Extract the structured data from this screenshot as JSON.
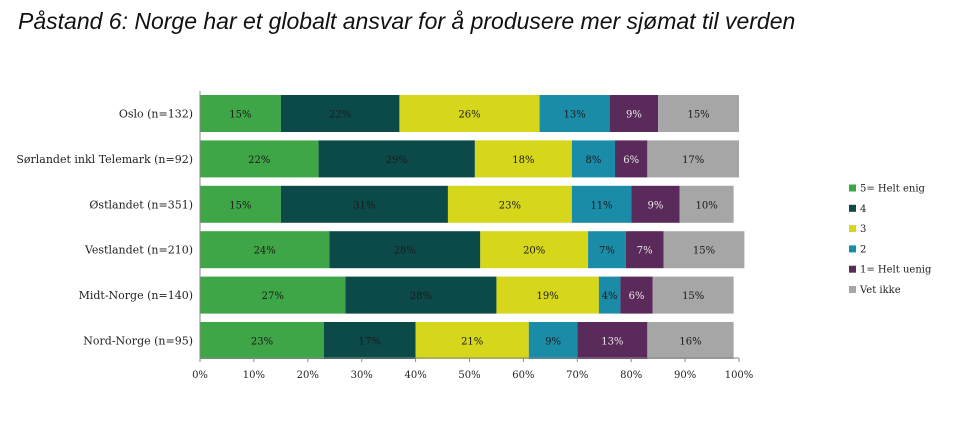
{
  "title": "Påstand 6: Norge har et globalt ansvar for å produsere mer sjømat til verden",
  "chart_data": {
    "type": "bar",
    "orientation": "horizontal",
    "stacked": true,
    "categories": [
      "Oslo (n=132)",
      "Sørlandet inkl Telemark (n=92)",
      "Østlandet (n=351)",
      "Vestlandet (n=210)",
      "Midt-Norge (n=140)",
      "Nord-Norge (n=95)"
    ],
    "series": [
      {
        "name": "5= Helt enig",
        "color": "#3ea647",
        "label_color": "#1a1a1a",
        "values": [
          15,
          22,
          15,
          24,
          27,
          23
        ]
      },
      {
        "name": "4",
        "color": "#0c4a4a",
        "label_color": "#1a1a1a",
        "values": [
          22,
          29,
          31,
          28,
          28,
          17
        ]
      },
      {
        "name": "3",
        "color": "#d6d61a",
        "label_color": "#1a1a1a",
        "values": [
          26,
          18,
          23,
          20,
          19,
          21
        ]
      },
      {
        "name": "2",
        "color": "#1a8ca8",
        "label_color": "#1a1a1a",
        "values": [
          13,
          8,
          11,
          7,
          4,
          9
        ]
      },
      {
        "name": "1= Helt uenig",
        "color": "#5a2a5a",
        "label_color": "#e8e8e8",
        "values": [
          9,
          6,
          9,
          7,
          6,
          13
        ]
      },
      {
        "name": "Vet ikke",
        "color": "#a6a6a6",
        "label_color": "#1a1a1a",
        "values": [
          15,
          17,
          10,
          15,
          15,
          16
        ]
      }
    ],
    "xlim": [
      0,
      100
    ],
    "x_ticks": [
      0,
      10,
      20,
      30,
      40,
      50,
      60,
      70,
      80,
      90,
      100
    ],
    "tick_suffix": "%",
    "value_suffix": "%",
    "legend_position": "right",
    "grid": false
  }
}
